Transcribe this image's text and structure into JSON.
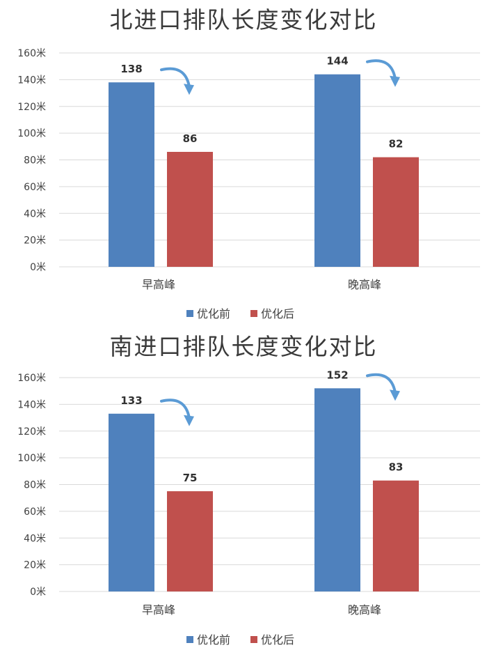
{
  "colors": {
    "before": "#4f81bd",
    "after": "#c0504d",
    "arrow": "#5b9bd5",
    "grid": "#d9d9d9"
  },
  "watermark": "",
  "chart_data": [
    {
      "type": "bar",
      "title": "北进口排队长度变化对比",
      "categories": [
        "早高峰",
        "晚高峰"
      ],
      "series": [
        {
          "name": "优化前",
          "values": [
            138,
            144
          ]
        },
        {
          "name": "优化后",
          "values": [
            86,
            82
          ]
        }
      ],
      "ylim": [
        0,
        160
      ],
      "yticks": [
        "0米",
        "20米",
        "40米",
        "60米",
        "80米",
        "100米",
        "120米",
        "140米",
        "160米"
      ],
      "grid": true,
      "legend": "bottom"
    },
    {
      "type": "bar",
      "title": "南进口排队长度变化对比",
      "categories": [
        "早高峰",
        "晚高峰"
      ],
      "series": [
        {
          "name": "优化前",
          "values": [
            133,
            152
          ]
        },
        {
          "name": "优化后",
          "values": [
            75,
            83
          ]
        }
      ],
      "ylim": [
        0,
        160
      ],
      "yticks": [
        "0米",
        "20米",
        "40米",
        "60米",
        "80米",
        "100米",
        "120米",
        "140米",
        "160米"
      ],
      "grid": true,
      "legend": "bottom"
    }
  ]
}
